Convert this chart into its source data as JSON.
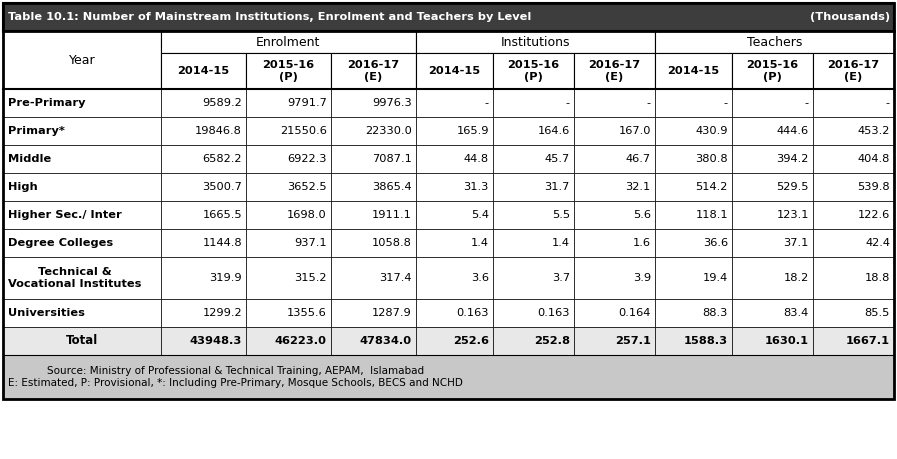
{
  "title": "Table 10.1: Number of Mainstream Institutions, Enrolment and Teachers by Level",
  "title_right": "(Thousands)",
  "title_bg": "#3d3d3d",
  "title_fg": "#ffffff",
  "header_bg": "#ffffff",
  "header_fg": "#000000",
  "row_bg": "#ffffff",
  "footer_bg": "#c8c8c8",
  "total_bg": "#e8e8e8",
  "sub_headers": [
    "2014-15",
    "2015-16\n(P)",
    "2016-17\n(E)",
    "2014-15",
    "2015-16\n(P)",
    "2016-17\n(E)",
    "2014-15",
    "2015-16\n(P)",
    "2016-17\n(E)"
  ],
  "rows": [
    {
      "label": "Pre-Primary",
      "bold": false,
      "two_line": false,
      "values": [
        "9589.2",
        "9791.7",
        "9976.3",
        "-",
        "-",
        "-",
        "-",
        "-",
        "-"
      ]
    },
    {
      "label": "Primary*",
      "bold": false,
      "two_line": false,
      "values": [
        "19846.8",
        "21550.6",
        "22330.0",
        "165.9",
        "164.6",
        "167.0",
        "430.9",
        "444.6",
        "453.2"
      ]
    },
    {
      "label": "Middle",
      "bold": false,
      "two_line": false,
      "values": [
        "6582.2",
        "6922.3",
        "7087.1",
        "44.8",
        "45.7",
        "46.7",
        "380.8",
        "394.2",
        "404.8"
      ]
    },
    {
      "label": "High",
      "bold": false,
      "two_line": false,
      "values": [
        "3500.7",
        "3652.5",
        "3865.4",
        "31.3",
        "31.7",
        "32.1",
        "514.2",
        "529.5",
        "539.8"
      ]
    },
    {
      "label": "Higher Sec./ Inter",
      "bold": false,
      "two_line": false,
      "values": [
        "1665.5",
        "1698.0",
        "1911.1",
        "5.4",
        "5.5",
        "5.6",
        "118.1",
        "123.1",
        "122.6"
      ]
    },
    {
      "label": "Degree Colleges",
      "bold": false,
      "two_line": false,
      "values": [
        "1144.8",
        "937.1",
        "1058.8",
        "1.4",
        "1.4",
        "1.6",
        "36.6",
        "37.1",
        "42.4"
      ]
    },
    {
      "label": "Technical &\nVocational Institutes",
      "bold": false,
      "two_line": true,
      "values": [
        "319.9",
        "315.2",
        "317.4",
        "3.6",
        "3.7",
        "3.9",
        "19.4",
        "18.2",
        "18.8"
      ]
    },
    {
      "label": "Universities",
      "bold": false,
      "two_line": false,
      "values": [
        "1299.2",
        "1355.6",
        "1287.9",
        "0.163",
        "0.163",
        "0.164",
        "88.3",
        "83.4",
        "85.5"
      ]
    },
    {
      "label": "Total",
      "bold": true,
      "two_line": false,
      "values": [
        "43948.3",
        "46223.0",
        "47834.0",
        "252.6",
        "252.8",
        "257.1",
        "1588.3",
        "1630.1",
        "1667.1"
      ]
    }
  ],
  "footer_lines": [
    "Source: Ministry of Professional & Technical Training, AEPAM,  Islamabad",
    "E: Estimated, P: Provisional, *: Including Pre-Primary, Mosque Schools, BECS and NCHD"
  ],
  "col_widths_rel": [
    2.05,
    1.1,
    1.1,
    1.1,
    1.0,
    1.05,
    1.05,
    1.0,
    1.05,
    1.05
  ]
}
